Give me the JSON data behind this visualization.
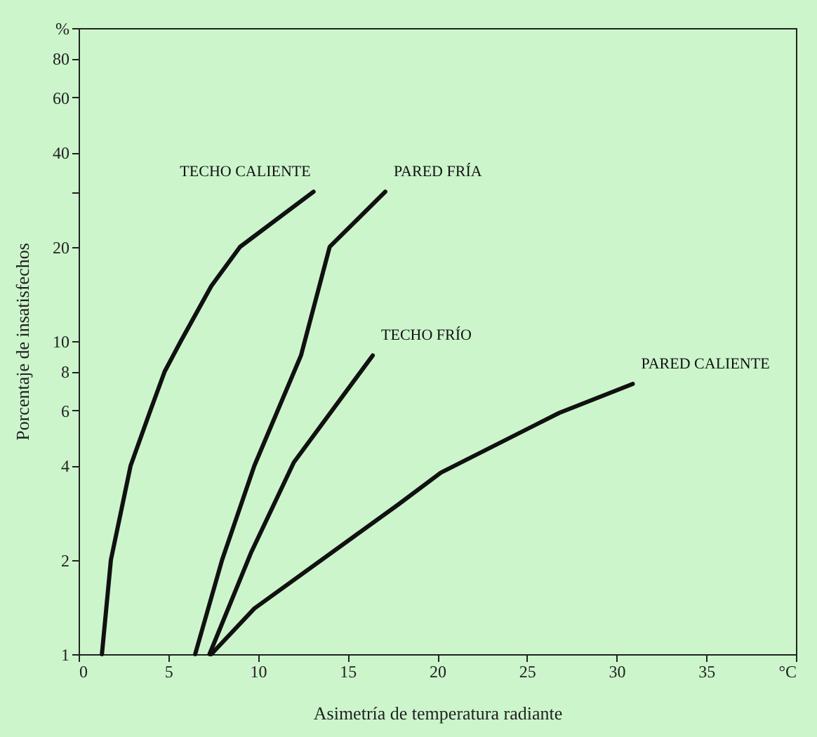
{
  "chart_data": {
    "type": "line",
    "xlabel": "Asimetría de temperatura radiante",
    "ylabel": "Porcentaje de insatisfechos",
    "xlim": [
      0,
      40
    ],
    "xticks": [
      0,
      5,
      10,
      15,
      20,
      25,
      30,
      35,
      {
        "value": 40,
        "label": "°C"
      }
    ],
    "ylim": [
      1,
      100
    ],
    "yticks": [
      1,
      2,
      4,
      6,
      8,
      10,
      20,
      {
        "value": 30,
        "label": null
      },
      40,
      60,
      80,
      {
        "value": 100,
        "label": "%"
      }
    ],
    "log": "y",
    "grid": false,
    "legend": false,
    "marker": "none",
    "line_style": "solid",
    "series": [
      {
        "name": "TECHO CALIENTE",
        "color": "#111111",
        "x": [
          1.3,
          1.8,
          2.9,
          4.0,
          4.8,
          5.7,
          7.4,
          9.0,
          13.1
        ],
        "values": [
          1,
          2,
          4,
          6,
          8,
          10,
          15,
          20,
          30
        ]
      },
      {
        "name": "PARED FRÍA",
        "color": "#111111",
        "x": [
          6.5,
          8.0,
          9.8,
          12.4,
          14.0,
          17.1
        ],
        "values": [
          1,
          2,
          4,
          9,
          20,
          30
        ]
      },
      {
        "name": "TECHO FRÍO",
        "color": "#111111",
        "x": [
          7.3,
          9.6,
          12.0,
          16.4
        ],
        "values": [
          1,
          2.1,
          4.1,
          9
        ]
      },
      {
        "name": "PARED CALIENTE",
        "color": "#111111",
        "x": [
          7.4,
          9.8,
          17.8,
          20.2,
          26.8,
          30.9
        ],
        "values": [
          1,
          1.4,
          3.0,
          3.8,
          5.9,
          7.3
        ]
      }
    ]
  }
}
